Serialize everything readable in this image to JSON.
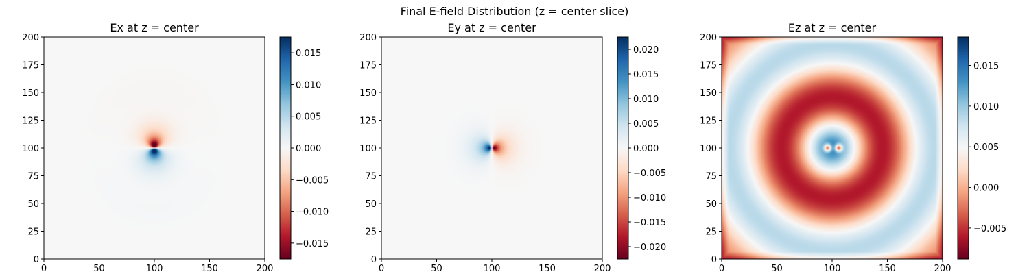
{
  "suptitle": "Final E-field Distribution (z = center slice)",
  "colormap": {
    "name": "RdBu",
    "stops": [
      "#67001f",
      "#b2182b",
      "#d6604d",
      "#f4a582",
      "#fddbc7",
      "#f7f7f7",
      "#d1e5f0",
      "#92c5de",
      "#4393c3",
      "#2166ac",
      "#053061"
    ]
  },
  "chart_data": [
    {
      "type": "heatmap",
      "title": "Ex at z = center",
      "xlim": [
        0,
        200
      ],
      "ylim": [
        0,
        200
      ],
      "xticks": [
        0,
        50,
        100,
        150,
        200
      ],
      "yticks": [
        0,
        25,
        50,
        75,
        100,
        125,
        150,
        175,
        200
      ],
      "clim": [
        -0.0175,
        0.0175
      ],
      "cbar_ticks": [
        0.015,
        0.01,
        0.005,
        0.0,
        -0.005,
        -0.01,
        -0.015
      ],
      "cbar_labels": [
        "0.015",
        "0.010",
        "0.005",
        "0.000",
        "−0.005",
        "−0.010",
        "−0.015"
      ],
      "field_description": "near-zero everywhere; small dipole lobes at the center (100,100): negative above-left, positive below"
    },
    {
      "type": "heatmap",
      "title": "Ey at z = center",
      "xlim": [
        0,
        200
      ],
      "ylim": [
        0,
        200
      ],
      "xticks": [
        0,
        50,
        100,
        150,
        200
      ],
      "yticks": [
        0,
        25,
        50,
        75,
        100,
        125,
        150,
        175,
        200
      ],
      "clim": [
        -0.0225,
        0.0225
      ],
      "cbar_ticks": [
        0.02,
        0.015,
        0.01,
        0.005,
        0.0,
        -0.005,
        -0.01,
        -0.015,
        -0.02
      ],
      "cbar_labels": [
        "0.020",
        "0.015",
        "0.010",
        "0.005",
        "0.000",
        "−0.005",
        "−0.010",
        "−0.015",
        "−0.020"
      ],
      "field_description": "near-zero everywhere; small dipole at the center: positive on the left, negative on the right"
    },
    {
      "type": "heatmap",
      "title": "Ez at z = center",
      "xlim": [
        0,
        200
      ],
      "ylim": [
        0,
        200
      ],
      "xticks": [
        0,
        50,
        100,
        150,
        200
      ],
      "yticks": [
        0,
        25,
        50,
        75,
        100,
        125,
        150,
        175,
        200
      ],
      "clim": [
        -0.0088,
        0.0185
      ],
      "cbar_ticks": [
        0.015,
        0.01,
        0.005,
        0.0,
        -0.005
      ],
      "cbar_labels": [
        "0.015",
        "0.010",
        "0.005",
        "0.000",
        "−0.005"
      ],
      "field_description": "concentric rings around the center: two red hot spots at center, blue disk (radius ~30), dark red ring (radius ~55-80), light outer rings, red square border"
    }
  ]
}
